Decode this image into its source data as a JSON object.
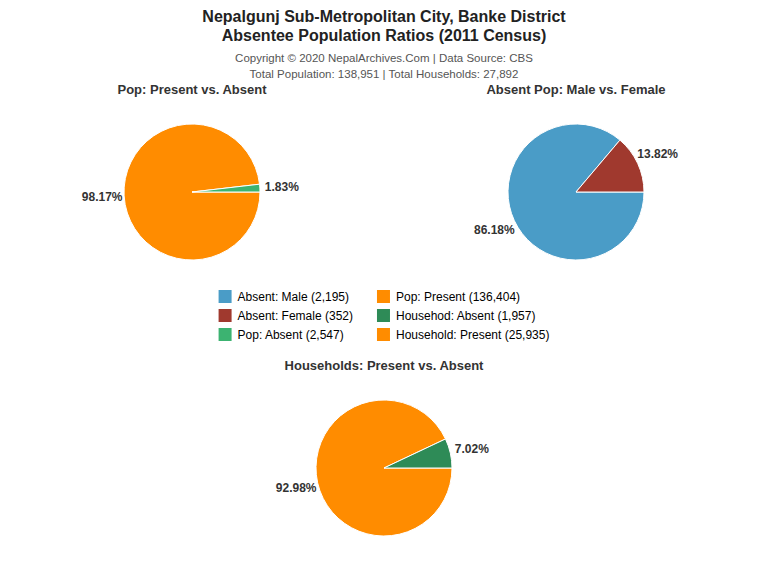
{
  "title": [
    "Nepalgunj Sub-Metropolitan City, Banke District",
    "Absentee Population Ratios (2011 Census)"
  ],
  "subtitle": [
    "Copyright © 2020 NepalArchives.Com | Data Source: CBS",
    "Total Population: 138,951 | Total Households: 27,892"
  ],
  "legend": "center",
  "chart_data": [
    {
      "type": "pie",
      "title": "Pop: Present vs. Absent",
      "categories": [
        "Pop: Present (136,404)",
        "Pop: Absent (2,547)"
      ],
      "values": [
        98.17,
        1.83
      ],
      "value_labels": [
        "98.17%",
        "1.83%"
      ],
      "colors": [
        "#FF8C00",
        "#3CB371"
      ],
      "data_labels": true
    },
    {
      "type": "pie",
      "title": "Absent Pop: Male vs. Female",
      "categories": [
        "Absent: Male (2,195)",
        "Absent: Female (352)"
      ],
      "values": [
        86.18,
        13.82
      ],
      "value_labels": [
        "86.18%",
        "13.82%"
      ],
      "colors": [
        "#4A9CC7",
        "#A0392E"
      ],
      "data_labels": true
    },
    {
      "type": "pie",
      "title": "Households: Present vs. Absent",
      "categories": [
        "Household: Present (25,935)",
        "Househod: Absent (1,957)"
      ],
      "values": [
        92.98,
        7.02
      ],
      "value_labels": [
        "92.98%",
        "7.02%"
      ],
      "colors": [
        "#FF8C00",
        "#2E8B57"
      ],
      "data_labels": true
    }
  ]
}
